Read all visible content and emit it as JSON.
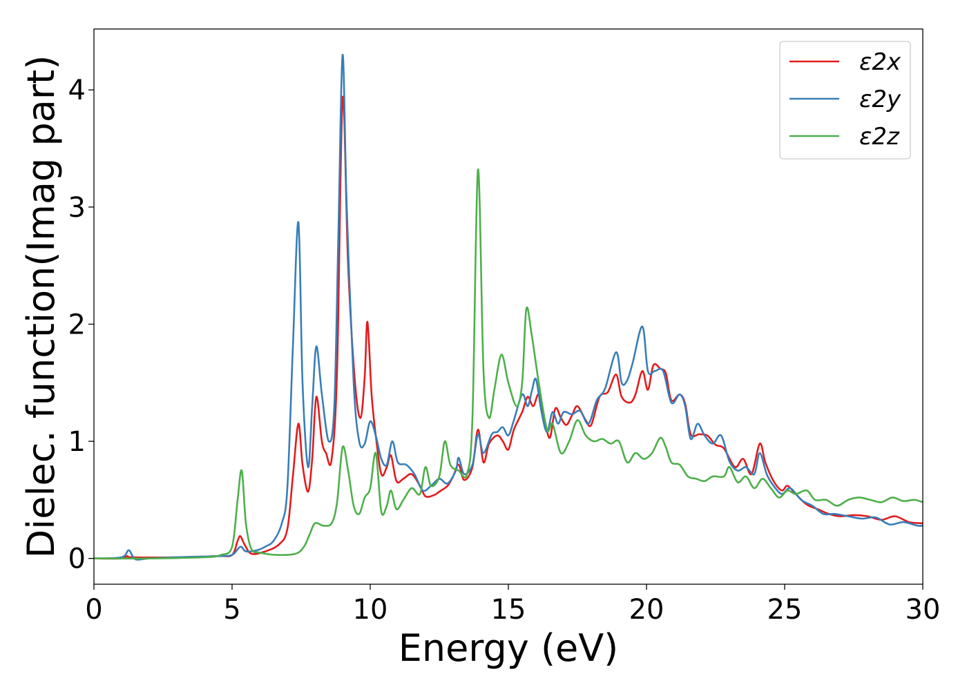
{
  "chart_data": {
    "type": "line",
    "title": "",
    "xlabel": "Energy (eV)",
    "ylabel": "Dielec. function(Imag part)",
    "xlim": [
      0,
      30
    ],
    "ylim": [
      -0.22,
      4.52
    ],
    "xticks": [
      0,
      5,
      10,
      15,
      20,
      25,
      30
    ],
    "yticks": [
      0,
      1,
      2,
      3,
      4
    ],
    "grid": false,
    "legend_position": "top-right",
    "series": [
      {
        "name": "ε2x",
        "color": "#e41a1c",
        "points": [
          [
            0,
            0
          ],
          [
            1,
            0
          ],
          [
            1.2,
            0.02
          ],
          [
            1.4,
            0.01
          ],
          [
            3,
            0.01
          ],
          [
            4.5,
            0.02
          ],
          [
            5,
            0.03
          ],
          [
            5.2,
            0.15
          ],
          [
            5.3,
            0.19
          ],
          [
            5.45,
            0.12
          ],
          [
            5.7,
            0.04
          ],
          [
            6.2,
            0.06
          ],
          [
            6.7,
            0.12
          ],
          [
            7,
            0.25
          ],
          [
            7.2,
            0.7
          ],
          [
            7.4,
            1.15
          ],
          [
            7.55,
            0.8
          ],
          [
            7.75,
            0.57
          ],
          [
            7.9,
            0.85
          ],
          [
            8.05,
            1.38
          ],
          [
            8.25,
            1.0
          ],
          [
            8.4,
            0.9
          ],
          [
            8.6,
            0.84
          ],
          [
            8.8,
            1.6
          ],
          [
            9.0,
            3.93
          ],
          [
            9.2,
            2.5
          ],
          [
            9.45,
            1.5
          ],
          [
            9.65,
            1.2
          ],
          [
            9.8,
            1.55
          ],
          [
            9.9,
            2.02
          ],
          [
            10.05,
            1.4
          ],
          [
            10.2,
            1.05
          ],
          [
            10.4,
            0.72
          ],
          [
            10.6,
            0.78
          ],
          [
            10.75,
            0.88
          ],
          [
            10.95,
            0.66
          ],
          [
            11.2,
            0.68
          ],
          [
            11.5,
            0.72
          ],
          [
            11.8,
            0.62
          ],
          [
            12.0,
            0.53
          ],
          [
            12.3,
            0.54
          ],
          [
            12.5,
            0.57
          ],
          [
            12.8,
            0.62
          ],
          [
            13.0,
            0.7
          ],
          [
            13.2,
            0.8
          ],
          [
            13.4,
            0.67
          ],
          [
            13.7,
            0.78
          ],
          [
            13.9,
            1.1
          ],
          [
            14.1,
            0.82
          ],
          [
            14.3,
            0.98
          ],
          [
            14.6,
            1.05
          ],
          [
            14.8,
            1.0
          ],
          [
            15.0,
            0.93
          ],
          [
            15.2,
            1.1
          ],
          [
            15.5,
            1.25
          ],
          [
            15.7,
            1.38
          ],
          [
            15.9,
            1.3
          ],
          [
            16.1,
            1.4
          ],
          [
            16.3,
            1.2
          ],
          [
            16.5,
            1.03
          ],
          [
            16.7,
            1.28
          ],
          [
            16.9,
            1.2
          ],
          [
            17.1,
            1.14
          ],
          [
            17.3,
            1.22
          ],
          [
            17.5,
            1.3
          ],
          [
            17.8,
            1.18
          ],
          [
            18.0,
            1.14
          ],
          [
            18.3,
            1.38
          ],
          [
            18.6,
            1.42
          ],
          [
            18.9,
            1.57
          ],
          [
            19.1,
            1.38
          ],
          [
            19.4,
            1.33
          ],
          [
            19.6,
            1.4
          ],
          [
            19.85,
            1.6
          ],
          [
            20.05,
            1.44
          ],
          [
            20.25,
            1.65
          ],
          [
            20.5,
            1.62
          ],
          [
            20.7,
            1.58
          ],
          [
            20.9,
            1.35
          ],
          [
            21.2,
            1.4
          ],
          [
            21.4,
            1.32
          ],
          [
            21.6,
            1.06
          ],
          [
            21.9,
            1.06
          ],
          [
            22.2,
            1.05
          ],
          [
            22.5,
            0.97
          ],
          [
            22.8,
            0.94
          ],
          [
            23.2,
            0.78
          ],
          [
            23.5,
            0.85
          ],
          [
            23.8,
            0.72
          ],
          [
            24.1,
            0.98
          ],
          [
            24.3,
            0.82
          ],
          [
            24.6,
            0.66
          ],
          [
            24.9,
            0.58
          ],
          [
            25.1,
            0.62
          ],
          [
            25.4,
            0.55
          ],
          [
            25.8,
            0.46
          ],
          [
            26.2,
            0.42
          ],
          [
            26.6,
            0.38
          ],
          [
            27,
            0.36
          ],
          [
            27.5,
            0.37
          ],
          [
            28,
            0.36
          ],
          [
            28.5,
            0.33
          ],
          [
            29,
            0.36
          ],
          [
            29.5,
            0.31
          ],
          [
            30,
            0.3
          ]
        ]
      },
      {
        "name": "ε2y",
        "color": "#377eb8",
        "points": [
          [
            0,
            0
          ],
          [
            1.0,
            0.01
          ],
          [
            1.25,
            0.07
          ],
          [
            1.4,
            0.02
          ],
          [
            1.55,
            -0.01
          ],
          [
            2,
            0
          ],
          [
            3,
            0.01
          ],
          [
            4.5,
            0.02
          ],
          [
            5.0,
            0.03
          ],
          [
            5.3,
            0.1
          ],
          [
            5.5,
            0.06
          ],
          [
            5.9,
            0.07
          ],
          [
            6.2,
            0.1
          ],
          [
            6.5,
            0.15
          ],
          [
            6.8,
            0.3
          ],
          [
            7.0,
            0.6
          ],
          [
            7.2,
            1.8
          ],
          [
            7.4,
            2.87
          ],
          [
            7.55,
            1.5
          ],
          [
            7.75,
            0.78
          ],
          [
            7.9,
            1.3
          ],
          [
            8.05,
            1.81
          ],
          [
            8.25,
            1.4
          ],
          [
            8.5,
            1.0
          ],
          [
            8.7,
            1.3
          ],
          [
            8.85,
            2.8
          ],
          [
            9.0,
            4.3
          ],
          [
            9.15,
            3.0
          ],
          [
            9.4,
            1.5
          ],
          [
            9.6,
            1.0
          ],
          [
            9.8,
            0.98
          ],
          [
            10.0,
            1.17
          ],
          [
            10.2,
            1.05
          ],
          [
            10.4,
            0.85
          ],
          [
            10.6,
            0.8
          ],
          [
            10.8,
            1.0
          ],
          [
            11.0,
            0.82
          ],
          [
            11.3,
            0.8
          ],
          [
            11.6,
            0.72
          ],
          [
            11.9,
            0.58
          ],
          [
            12.2,
            0.62
          ],
          [
            12.5,
            0.68
          ],
          [
            12.8,
            0.64
          ],
          [
            13.1,
            0.75
          ],
          [
            13.2,
            0.86
          ],
          [
            13.4,
            0.72
          ],
          [
            13.7,
            0.8
          ],
          [
            13.9,
            1.06
          ],
          [
            14.1,
            0.9
          ],
          [
            14.4,
            1.06
          ],
          [
            14.6,
            1.08
          ],
          [
            14.8,
            1.12
          ],
          [
            15.0,
            1.05
          ],
          [
            15.2,
            1.18
          ],
          [
            15.5,
            1.4
          ],
          [
            15.7,
            1.3
          ],
          [
            15.85,
            1.43
          ],
          [
            16.0,
            1.53
          ],
          [
            16.2,
            1.25
          ],
          [
            16.4,
            1.08
          ],
          [
            16.6,
            1.25
          ],
          [
            16.8,
            1.15
          ],
          [
            17.0,
            1.25
          ],
          [
            17.3,
            1.23
          ],
          [
            17.6,
            1.26
          ],
          [
            17.9,
            1.15
          ],
          [
            18.2,
            1.35
          ],
          [
            18.5,
            1.45
          ],
          [
            18.9,
            1.76
          ],
          [
            19.1,
            1.5
          ],
          [
            19.3,
            1.52
          ],
          [
            19.5,
            1.67
          ],
          [
            19.85,
            1.98
          ],
          [
            20.05,
            1.6
          ],
          [
            20.3,
            1.6
          ],
          [
            20.6,
            1.6
          ],
          [
            20.9,
            1.33
          ],
          [
            21.2,
            1.4
          ],
          [
            21.4,
            1.3
          ],
          [
            21.6,
            1.02
          ],
          [
            21.85,
            1.15
          ],
          [
            22.1,
            1.05
          ],
          [
            22.4,
            0.98
          ],
          [
            22.7,
            1.05
          ],
          [
            23.0,
            0.83
          ],
          [
            23.3,
            0.75
          ],
          [
            23.6,
            0.78
          ],
          [
            23.9,
            0.72
          ],
          [
            24.1,
            0.9
          ],
          [
            24.35,
            0.72
          ],
          [
            24.6,
            0.62
          ],
          [
            24.9,
            0.55
          ],
          [
            25.2,
            0.6
          ],
          [
            25.6,
            0.5
          ],
          [
            26.0,
            0.45
          ],
          [
            26.4,
            0.38
          ],
          [
            26.8,
            0.38
          ],
          [
            27.3,
            0.36
          ],
          [
            27.8,
            0.34
          ],
          [
            28.3,
            0.35
          ],
          [
            28.8,
            0.29
          ],
          [
            29.3,
            0.31
          ],
          [
            29.8,
            0.28
          ],
          [
            30,
            0.28
          ]
        ]
      },
      {
        "name": "ε2z",
        "color": "#4daf4a",
        "points": [
          [
            0,
            0
          ],
          [
            2,
            0
          ],
          [
            4,
            0.01
          ],
          [
            4.6,
            0.03
          ],
          [
            5.0,
            0.1
          ],
          [
            5.2,
            0.5
          ],
          [
            5.35,
            0.75
          ],
          [
            5.5,
            0.3
          ],
          [
            5.7,
            0.08
          ],
          [
            6.0,
            0.05
          ],
          [
            6.6,
            0.03
          ],
          [
            7.3,
            0.04
          ],
          [
            7.6,
            0.1
          ],
          [
            7.8,
            0.2
          ],
          [
            8.0,
            0.3
          ],
          [
            8.3,
            0.28
          ],
          [
            8.6,
            0.3
          ],
          [
            8.8,
            0.48
          ],
          [
            9.0,
            0.95
          ],
          [
            9.2,
            0.75
          ],
          [
            9.4,
            0.45
          ],
          [
            9.6,
            0.38
          ],
          [
            9.8,
            0.52
          ],
          [
            10.0,
            0.6
          ],
          [
            10.2,
            0.9
          ],
          [
            10.4,
            0.4
          ],
          [
            10.6,
            0.45
          ],
          [
            10.75,
            0.58
          ],
          [
            10.95,
            0.42
          ],
          [
            11.2,
            0.5
          ],
          [
            11.5,
            0.6
          ],
          [
            11.8,
            0.55
          ],
          [
            12.0,
            0.78
          ],
          [
            12.2,
            0.62
          ],
          [
            12.5,
            0.7
          ],
          [
            12.7,
            1.0
          ],
          [
            12.9,
            0.8
          ],
          [
            13.2,
            0.75
          ],
          [
            13.5,
            0.72
          ],
          [
            13.7,
            1.2
          ],
          [
            13.9,
            3.32
          ],
          [
            14.1,
            1.6
          ],
          [
            14.3,
            1.2
          ],
          [
            14.5,
            1.45
          ],
          [
            14.75,
            1.74
          ],
          [
            15.0,
            1.5
          ],
          [
            15.3,
            1.3
          ],
          [
            15.5,
            1.5
          ],
          [
            15.65,
            2.13
          ],
          [
            15.85,
            1.9
          ],
          [
            16.1,
            1.5
          ],
          [
            16.4,
            1.1
          ],
          [
            16.6,
            1.15
          ],
          [
            16.9,
            0.9
          ],
          [
            17.2,
            1.0
          ],
          [
            17.5,
            1.18
          ],
          [
            17.8,
            1.05
          ],
          [
            18.1,
            1.0
          ],
          [
            18.4,
            1.02
          ],
          [
            18.7,
            0.98
          ],
          [
            19.0,
            1.0
          ],
          [
            19.3,
            0.82
          ],
          [
            19.6,
            0.9
          ],
          [
            19.9,
            0.85
          ],
          [
            20.2,
            0.9
          ],
          [
            20.5,
            1.03
          ],
          [
            20.7,
            0.95
          ],
          [
            20.9,
            0.82
          ],
          [
            21.2,
            0.8
          ],
          [
            21.5,
            0.7
          ],
          [
            21.8,
            0.68
          ],
          [
            22.1,
            0.66
          ],
          [
            22.4,
            0.7
          ],
          [
            22.8,
            0.7
          ],
          [
            23.0,
            0.78
          ],
          [
            23.3,
            0.65
          ],
          [
            23.6,
            0.7
          ],
          [
            23.9,
            0.6
          ],
          [
            24.2,
            0.68
          ],
          [
            24.5,
            0.6
          ],
          [
            24.8,
            0.52
          ],
          [
            25.1,
            0.58
          ],
          [
            25.4,
            0.55
          ],
          [
            25.8,
            0.58
          ],
          [
            26.1,
            0.5
          ],
          [
            26.5,
            0.5
          ],
          [
            26.9,
            0.45
          ],
          [
            27.3,
            0.5
          ],
          [
            27.7,
            0.52
          ],
          [
            28.1,
            0.5
          ],
          [
            28.5,
            0.48
          ],
          [
            28.9,
            0.52
          ],
          [
            29.3,
            0.49
          ],
          [
            29.7,
            0.5
          ],
          [
            30,
            0.48
          ]
        ]
      }
    ]
  }
}
